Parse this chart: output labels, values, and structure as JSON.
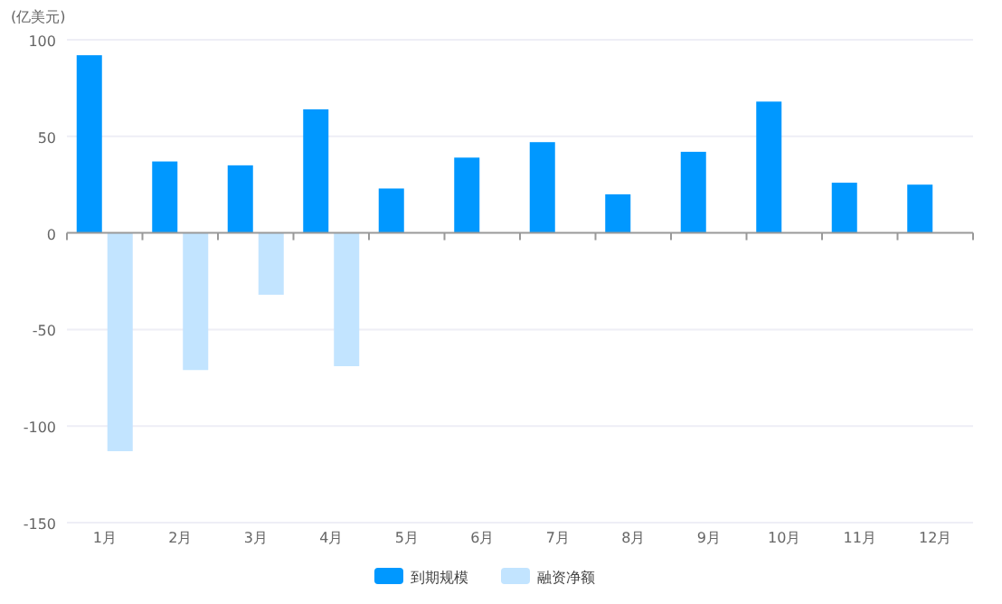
{
  "chart_data": {
    "type": "bar",
    "ylabel": "(亿美元)",
    "categories": [
      "1月",
      "2月",
      "3月",
      "4月",
      "5月",
      "6月",
      "7月",
      "8月",
      "9月",
      "10月",
      "11月",
      "12月"
    ],
    "series": [
      {
        "name": "到期规模",
        "color": "#0098ff",
        "values": [
          92,
          37,
          35,
          64,
          23,
          39,
          47,
          20,
          42,
          68,
          26,
          25
        ]
      },
      {
        "name": "融资净额",
        "color": "#c2e4ff",
        "values": [
          -113,
          -71,
          -32,
          -69,
          null,
          null,
          null,
          null,
          null,
          null,
          null,
          null
        ]
      }
    ],
    "ylim": [
      -150,
      100
    ],
    "yticks": [
      -150,
      -100,
      -50,
      0,
      50,
      100
    ],
    "grid": "y",
    "legend": "bottom"
  }
}
